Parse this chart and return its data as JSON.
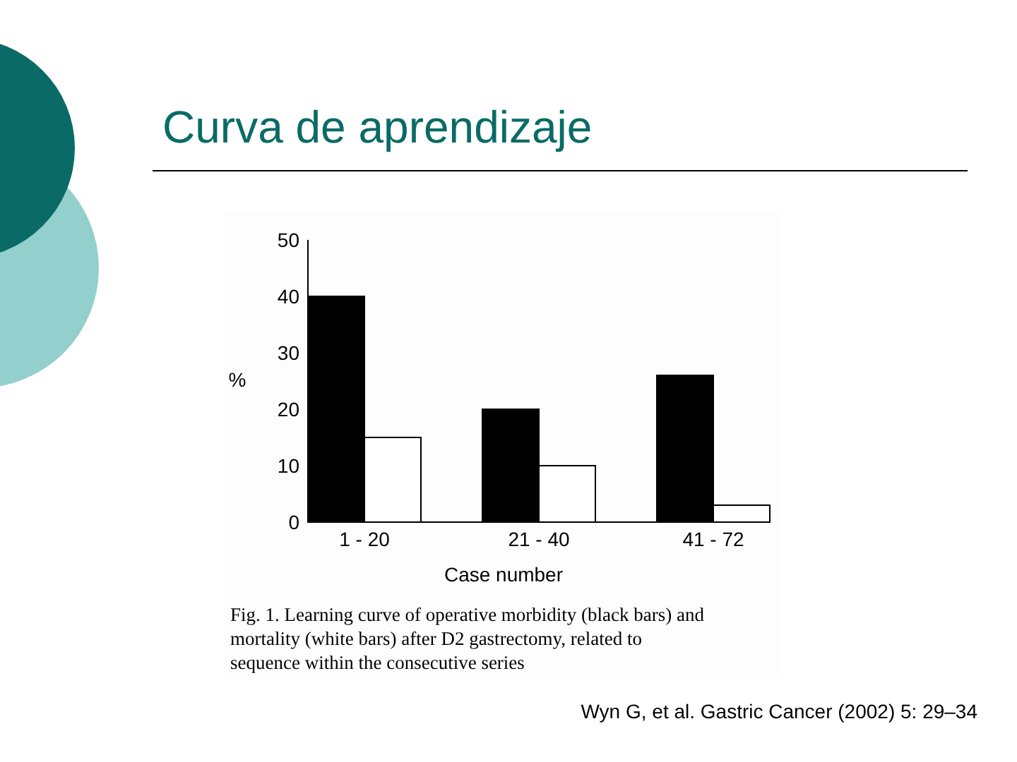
{
  "chart_data": {
    "type": "bar",
    "title": "Curva de aprendizaje",
    "xlabel": "Case number",
    "ylabel": "%",
    "categories": [
      "1 - 20",
      "21 - 40",
      "41 - 72"
    ],
    "series": [
      {
        "color": "#000000",
        "values": [
          40,
          20,
          26
        ]
      },
      {
        "color": "#ffffff",
        "values": [
          15,
          10,
          3
        ]
      }
    ],
    "ylim": [
      0,
      50
    ],
    "yticks": [
      0,
      10,
      20,
      30,
      40,
      50
    ],
    "grid": false,
    "annotations": [
      "Fig. 1. Learning curve of operative morbidity (black bars) and mortality (white bars) after D2 gastrectomy, related to sequence within the consecutive series",
      "Wyn G, et al. Gastric Cancer (2002) 5: 29–34"
    ]
  }
}
